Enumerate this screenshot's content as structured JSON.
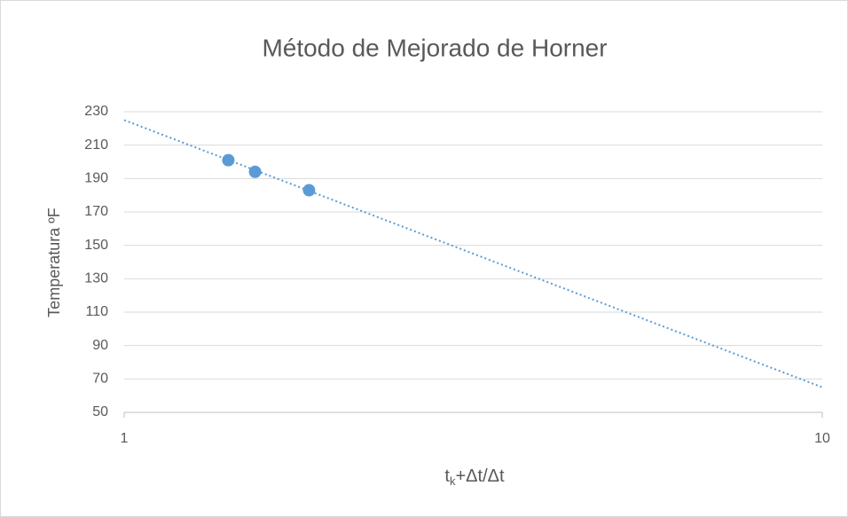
{
  "chart_data": {
    "type": "scatter",
    "title": "Método de Mejorado de Horner",
    "ylabel": "Temperatura ºF",
    "xlabel": {
      "base": "t",
      "subscript": "k",
      "rest": "+Δt/Δt"
    },
    "xlog": true,
    "xlim": [
      1,
      10
    ],
    "xticks": [
      1,
      10
    ],
    "ylim": [
      50,
      230
    ],
    "yticks": [
      50,
      70,
      90,
      110,
      130,
      150,
      170,
      190,
      210,
      230
    ],
    "grid": true,
    "color": "#5b9bd5",
    "x": [
      1.41,
      1.54,
      1.84
    ],
    "values": [
      201,
      194,
      183
    ],
    "trendline": {
      "x": [
        1,
        10
      ],
      "values": [
        225,
        65
      ]
    }
  }
}
